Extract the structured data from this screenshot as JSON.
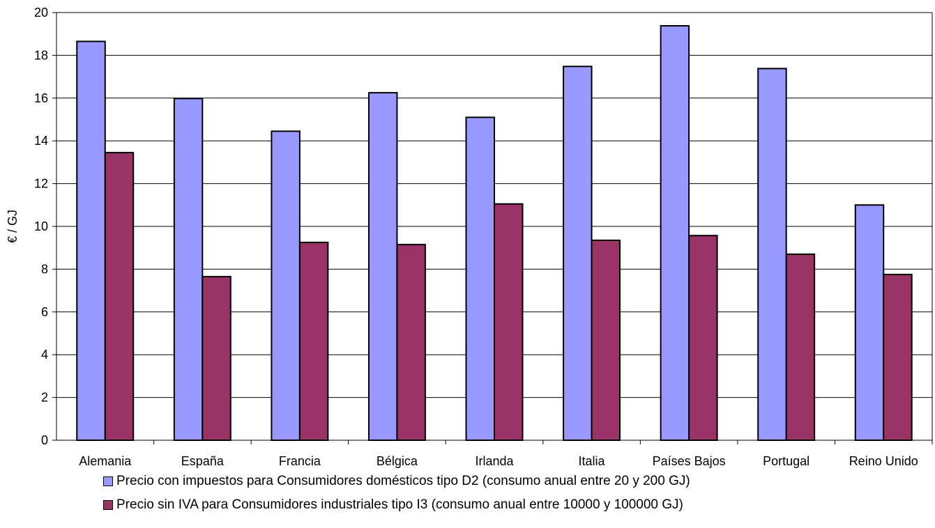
{
  "chart_data": {
    "type": "bar",
    "title": "",
    "xlabel": "",
    "ylabel": "€ / GJ",
    "ylim": [
      0,
      20
    ],
    "yticks": [
      0,
      2,
      4,
      6,
      8,
      10,
      12,
      14,
      16,
      18,
      20
    ],
    "grid": true,
    "legend_position": "bottom",
    "categories": [
      "Alemania",
      "España",
      "Francia",
      "Bélgica",
      "Irlanda",
      "Italia",
      "Países Bajos",
      "Portugal",
      "Reino Unido"
    ],
    "series": [
      {
        "name": "Precio con impuestos para Consumidores domésticos tipo D2 (consumo anual entre 20 y 200 GJ)",
        "color": "#9999ff",
        "values": [
          18.65,
          15.98,
          14.45,
          16.25,
          15.1,
          17.48,
          19.38,
          17.38,
          11.0
        ]
      },
      {
        "name": "Precio sin IVA para Consumidores industriales tipo I3 (consumo anual entre 10000 y 100000 GJ)",
        "color": "#993366",
        "values": [
          13.45,
          7.65,
          9.25,
          9.15,
          11.05,
          9.35,
          9.57,
          8.7,
          7.75
        ]
      }
    ]
  }
}
